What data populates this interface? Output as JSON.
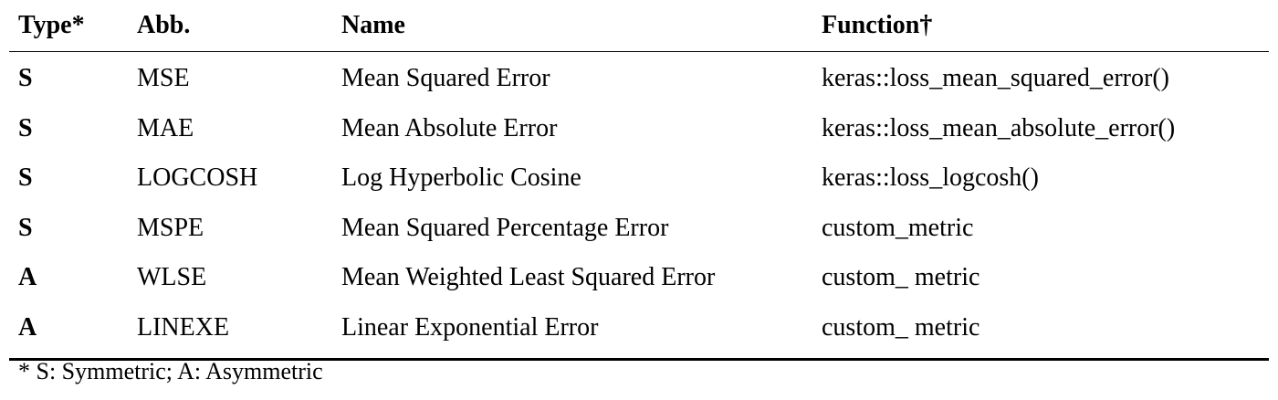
{
  "table": {
    "headers": [
      "Type*",
      "Abb.",
      "Name",
      "Function†"
    ],
    "rows": [
      {
        "type": "S",
        "abb": "MSE",
        "name": "Mean Squared Error",
        "function": "keras::loss_mean_squared_error()"
      },
      {
        "type": "S",
        "abb": "MAE",
        "name": "Mean Absolute Error",
        "function": "keras::loss_mean_absolute_error()"
      },
      {
        "type": "S",
        "abb": "LOGCOSH",
        "name": "Log Hyperbolic Cosine",
        "function": "keras::loss_logcosh()"
      },
      {
        "type": "S",
        "abb": "MSPE",
        "name": "Mean Squared Percentage Error",
        "function": "custom_metric"
      },
      {
        "type": "A",
        "abb": "WLSE",
        "name": "Mean Weighted Least Squared Error",
        "function": "custom_ metric"
      },
      {
        "type": "A",
        "abb": "LINEXE",
        "name": "Linear Exponential Error",
        "function": "custom_ metric"
      }
    ]
  },
  "footnote": "* S: Symmetric; A: Asymmetric"
}
